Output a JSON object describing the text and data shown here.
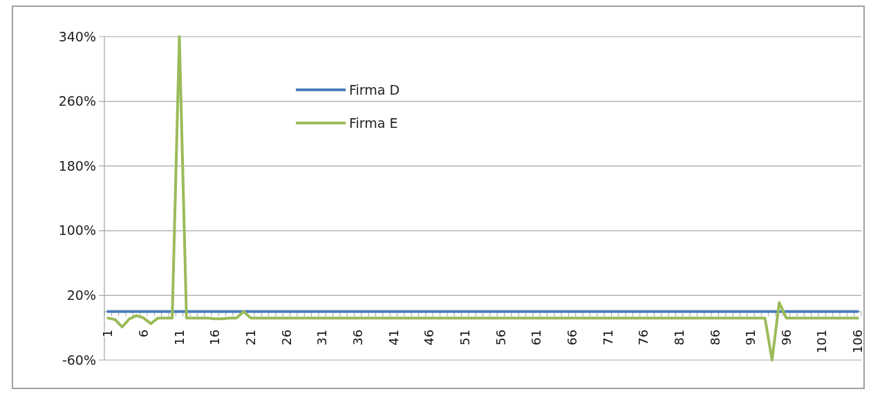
{
  "chart_data": {
    "type": "line",
    "categories": [
      "1",
      null,
      null,
      null,
      null,
      "6",
      null,
      null,
      null,
      null,
      "11",
      null,
      null,
      null,
      null,
      "16",
      null,
      null,
      null,
      null,
      "21",
      null,
      null,
      null,
      null,
      "26",
      null,
      null,
      null,
      null,
      "31",
      null,
      null,
      null,
      null,
      "36",
      null,
      null,
      null,
      null,
      "41",
      null,
      null,
      null,
      null,
      "46",
      null,
      null,
      null,
      null,
      "51",
      null,
      null,
      null,
      null,
      "56",
      null,
      null,
      null,
      null,
      "61",
      null,
      null,
      null,
      null,
      "66",
      null,
      null,
      null,
      null,
      "71",
      null,
      null,
      null,
      null,
      "76",
      null,
      null,
      null,
      null,
      "81",
      null,
      null,
      null,
      null,
      "86",
      null,
      null,
      null,
      null,
      "91",
      null,
      null,
      null,
      null,
      "96",
      null,
      null,
      null,
      null,
      "101",
      null,
      null,
      null,
      null,
      "106"
    ],
    "series": [
      {
        "name": "Firma D",
        "color": "#4a7ebb",
        "values": [
          0,
          0,
          0,
          0,
          0,
          0,
          0,
          0,
          0,
          0,
          0,
          0,
          0,
          0,
          0,
          0,
          0,
          0,
          0,
          0,
          0,
          0,
          0,
          0,
          0,
          0,
          0,
          0,
          0,
          0,
          0,
          0,
          0,
          0,
          0,
          0,
          0,
          0,
          0,
          0,
          0,
          0,
          0,
          0,
          0,
          0,
          0,
          0,
          0,
          0,
          0,
          0,
          0,
          0,
          0,
          0,
          0,
          0,
          0,
          0,
          0,
          0,
          0,
          0,
          0,
          0,
          0,
          0,
          0,
          0,
          0,
          0,
          0,
          0,
          0,
          0,
          0,
          0,
          0,
          0,
          0,
          0,
          0,
          0,
          0,
          0,
          0,
          0,
          0,
          0,
          0,
          0,
          0,
          0,
          0,
          0,
          0,
          0,
          0,
          0,
          0,
          0,
          0,
          0,
          0,
          0
        ]
      },
      {
        "name": "Firma E",
        "color": "#9bbb59",
        "values": [
          -8,
          -10,
          -19,
          -9,
          -5,
          -8,
          -15,
          -8,
          -8,
          -8,
          340,
          -8,
          -8,
          -8,
          -8,
          -9,
          -9,
          -8,
          -8,
          0,
          -8,
          -8,
          -8,
          -8,
          -8,
          -8,
          -8,
          -8,
          -8,
          -8,
          -8,
          -8,
          -8,
          -8,
          -8,
          -8,
          -8,
          -8,
          -8,
          -8,
          -8,
          -8,
          -8,
          -8,
          -8,
          -8,
          -8,
          -8,
          -8,
          -8,
          -8,
          -8,
          -8,
          -8,
          -8,
          -8,
          -8,
          -8,
          -8,
          -8,
          -8,
          -8,
          -8,
          -8,
          -8,
          -8,
          -8,
          -8,
          -8,
          -8,
          -8,
          -8,
          -8,
          -8,
          -8,
          -8,
          -8,
          -8,
          -8,
          -8,
          -8,
          -8,
          -8,
          -8,
          -8,
          -8,
          -8,
          -8,
          -8,
          -8,
          -8,
          -8,
          -8,
          -60,
          11,
          -8,
          -8,
          -8,
          -8,
          -8,
          -8,
          -8,
          -8,
          -8,
          -8,
          -8
        ]
      }
    ],
    "ylim": [
      -60,
      340
    ],
    "yticks": [
      {
        "value": -60,
        "label": "-60%"
      },
      {
        "value": 20,
        "label": "20%"
      },
      {
        "value": 100,
        "label": "100%"
      },
      {
        "value": 180,
        "label": "180%"
      },
      {
        "value": 260,
        "label": "260%"
      },
      {
        "value": 340,
        "label": "340%"
      }
    ],
    "grid": "y",
    "legend": "top",
    "marker": "none",
    "line_style": "solid"
  }
}
